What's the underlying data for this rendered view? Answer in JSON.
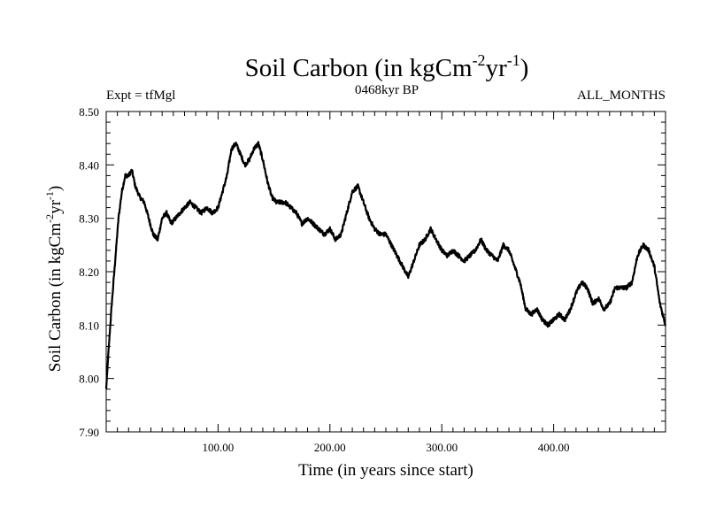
{
  "chart_data": {
    "type": "line",
    "title": {
      "main": "Soil Carbon (in kgCm",
      "sup1": "-2",
      "mid": "yr",
      "sup2": "-1",
      "end": ")"
    },
    "header_left": "Expt = tfMgl",
    "header_center": "0468kyr BP",
    "header_right": "ALL_MONTHS",
    "xlabel": "Time (in years since start)",
    "ylabel": {
      "main": "Soil Carbon (in kgCm",
      "sup1": "-2",
      "mid": "yr",
      "sup2": "-1",
      "end": ")"
    },
    "xlim": [
      0,
      500
    ],
    "ylim": [
      7.9,
      8.5
    ],
    "x_ticks": [
      {
        "value": 100,
        "label": "100.00"
      },
      {
        "value": 200,
        "label": "200.00"
      },
      {
        "value": 300,
        "label": "300.00"
      },
      {
        "value": 400,
        "label": "400.00"
      }
    ],
    "y_ticks": [
      {
        "value": 7.9,
        "label": "7.90"
      },
      {
        "value": 8.0,
        "label": "8.00"
      },
      {
        "value": 8.1,
        "label": "8.10"
      },
      {
        "value": 8.2,
        "label": "8.20"
      },
      {
        "value": 8.3,
        "label": "8.30"
      },
      {
        "value": 8.4,
        "label": "8.40"
      },
      {
        "value": 8.5,
        "label": "8.50"
      }
    ],
    "series": [
      {
        "name": "Soil Carbon",
        "x": [
          0,
          2,
          5,
          8,
          11,
          14,
          17,
          20,
          23,
          26,
          30,
          34,
          38,
          42,
          46,
          50,
          54,
          58,
          62,
          66,
          70,
          75,
          80,
          85,
          90,
          95,
          100,
          104,
          108,
          112,
          116,
          120,
          124,
          128,
          132,
          136,
          140,
          144,
          148,
          152,
          156,
          160,
          165,
          170,
          175,
          180,
          185,
          190,
          195,
          200,
          205,
          210,
          215,
          220,
          225,
          230,
          235,
          240,
          245,
          250,
          255,
          260,
          265,
          270,
          275,
          280,
          285,
          290,
          295,
          300,
          305,
          310,
          315,
          320,
          325,
          330,
          335,
          340,
          345,
          350,
          355,
          360,
          365,
          370,
          375,
          380,
          385,
          390,
          395,
          400,
          405,
          410,
          415,
          420,
          425,
          430,
          435,
          440,
          445,
          450,
          455,
          460,
          465,
          470,
          475,
          480,
          485,
          490,
          495,
          500
        ],
        "y": [
          7.98,
          8.05,
          8.14,
          8.22,
          8.3,
          8.35,
          8.38,
          8.38,
          8.39,
          8.36,
          8.34,
          8.33,
          8.3,
          8.27,
          8.26,
          8.3,
          8.31,
          8.29,
          8.3,
          8.31,
          8.32,
          8.33,
          8.32,
          8.31,
          8.32,
          8.31,
          8.32,
          8.35,
          8.38,
          8.43,
          8.44,
          8.42,
          8.4,
          8.41,
          8.43,
          8.44,
          8.41,
          8.37,
          8.34,
          8.33,
          8.33,
          8.33,
          8.32,
          8.31,
          8.29,
          8.3,
          8.29,
          8.28,
          8.27,
          8.28,
          8.26,
          8.27,
          8.31,
          8.35,
          8.36,
          8.33,
          8.3,
          8.28,
          8.27,
          8.27,
          8.25,
          8.23,
          8.21,
          8.19,
          8.22,
          8.25,
          8.26,
          8.28,
          8.26,
          8.24,
          8.23,
          8.24,
          8.23,
          8.22,
          8.23,
          8.24,
          8.26,
          8.24,
          8.23,
          8.22,
          8.25,
          8.24,
          8.21,
          8.18,
          8.13,
          8.12,
          8.13,
          8.11,
          8.1,
          8.11,
          8.12,
          8.11,
          8.13,
          8.16,
          8.18,
          8.17,
          8.14,
          8.15,
          8.13,
          8.14,
          8.17,
          8.17,
          8.17,
          8.18,
          8.23,
          8.25,
          8.24,
          8.21,
          8.14,
          8.1
        ]
      }
    ]
  }
}
